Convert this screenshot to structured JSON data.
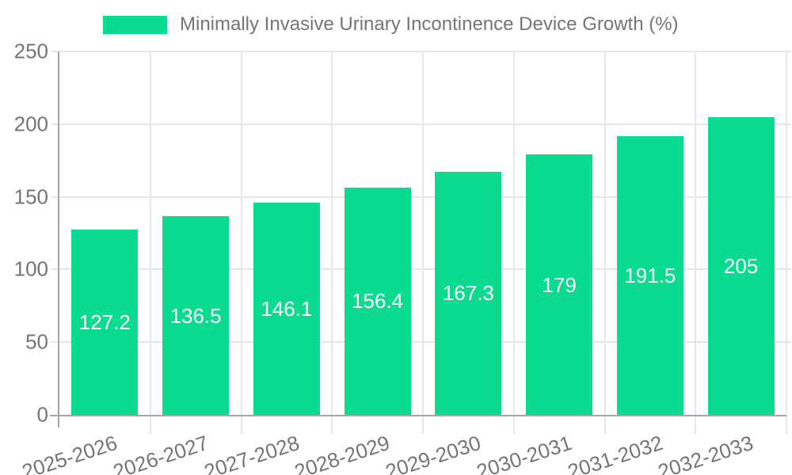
{
  "legend": {
    "label": "Minimally Invasive Urinary Incontinence Device Growth (%)"
  },
  "chart_data": {
    "type": "bar",
    "title": "Minimally Invasive Urinary Incontinence Device Growth (%)",
    "categories": [
      "2025-2026",
      "2026-2027",
      "2027-2028",
      "2028-2029",
      "2029-2030",
      "2030-2031",
      "2031-2032",
      "2032-2033"
    ],
    "values": [
      127.2,
      136.5,
      146.1,
      156.4,
      167.3,
      179,
      191.5,
      205
    ],
    "bar_labels": [
      "127.2",
      "136.5",
      "146.1",
      "156.4",
      "167.3",
      "179",
      "191.5",
      "205"
    ],
    "xlabel": "",
    "ylabel": "",
    "ylim": [
      0,
      250
    ],
    "yticks": [
      0,
      50,
      100,
      150,
      200,
      250
    ],
    "grid": true,
    "legend_position": "top",
    "bar_label_position": "center",
    "x_label_rotation_deg": -18,
    "colors": {
      "bar": "#0bdb8f",
      "bar_label_text": "#ffffff",
      "axis": "#a6a6a6",
      "grid": "#e6e6e6",
      "tick_text": "#757575",
      "title_text": "#757575",
      "background": "#ffffff"
    }
  }
}
